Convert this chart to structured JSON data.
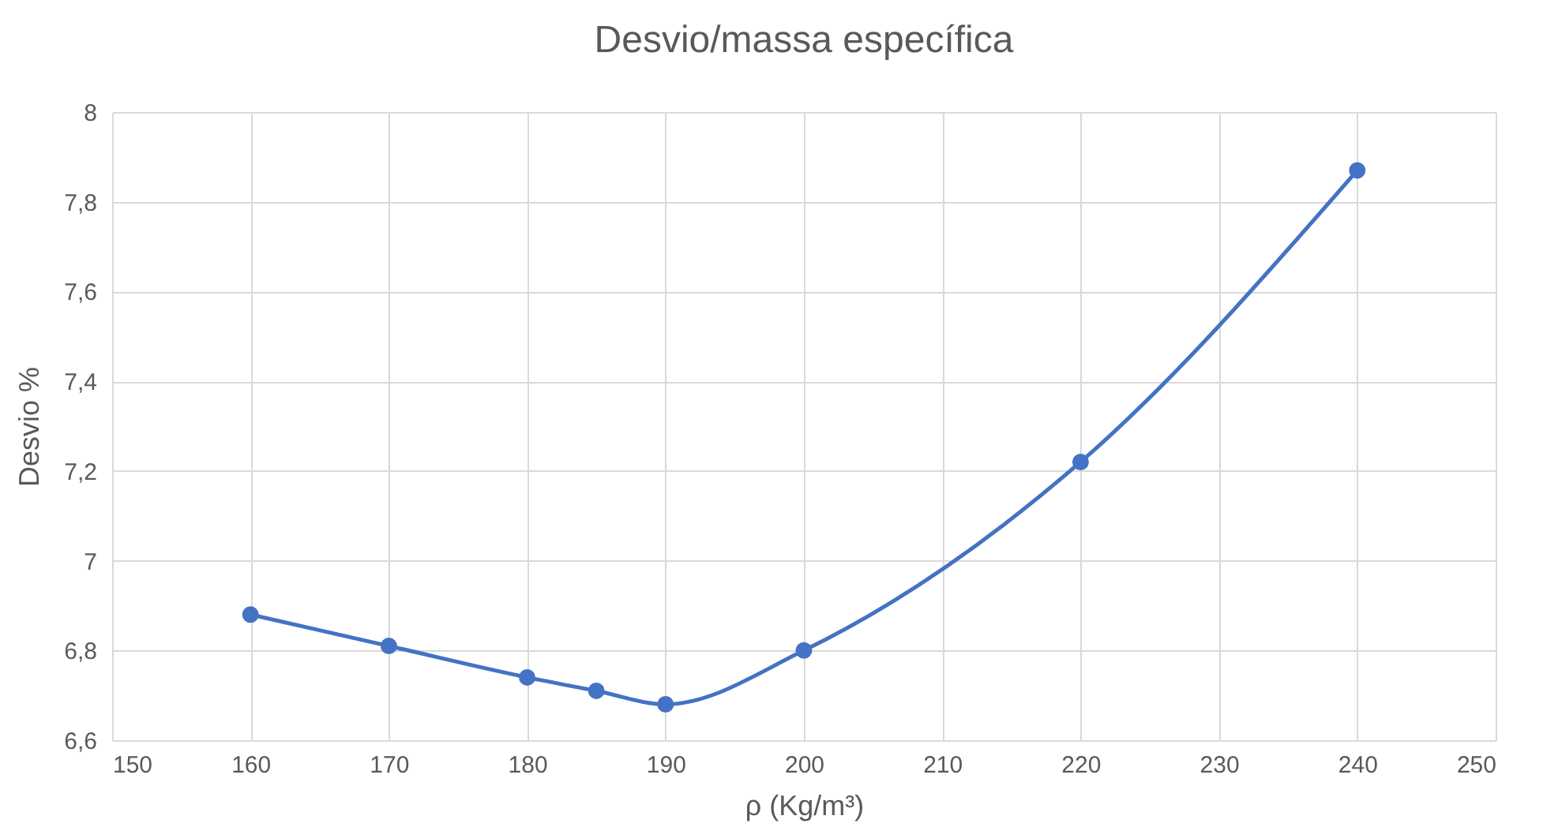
{
  "chart_data": {
    "type": "line",
    "title": "Desvio/massa específica",
    "xlabel": "ρ (Kg/m³)",
    "ylabel": "Desvio %",
    "x": [
      160,
      170,
      180,
      185,
      190,
      200,
      220,
      240
    ],
    "series": [
      {
        "color": "#4472c4",
        "values": [
          6.88,
          6.81,
          6.74,
          6.71,
          6.68,
          6.8,
          7.22,
          7.87
        ]
      }
    ],
    "xlim": [
      150,
      250
    ],
    "xticks": [
      150,
      160,
      170,
      180,
      190,
      200,
      210,
      220,
      230,
      240,
      250
    ],
    "ylim": [
      6.6,
      8
    ],
    "yticks": [
      {
        "value": 6.6,
        "label": "6,6"
      },
      {
        "value": 6.8,
        "label": "6,8"
      },
      7,
      {
        "value": 7.2,
        "label": "7,2"
      },
      {
        "value": 7.4,
        "label": "7,4"
      },
      {
        "value": 7.6,
        "label": "7,6"
      },
      {
        "value": 7.8,
        "label": "7,8"
      },
      8
    ],
    "grid": true,
    "marker": "circle",
    "line_style": "solid"
  }
}
